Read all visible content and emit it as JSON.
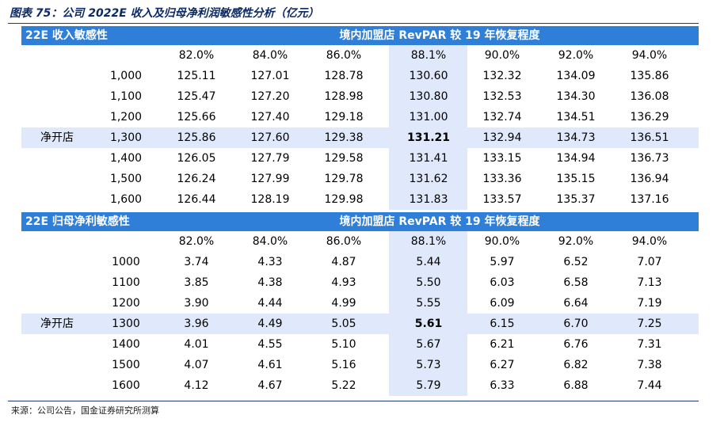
{
  "title": "图表 75：公司 2022E 收入及归母净利润敏感性分析（亿元）",
  "source": "来源：公司公告，国金证券研究所测算",
  "colors": {
    "header_bg": "#2f7fd8",
    "highlight_bg": "#dfe9fb",
    "title_color": "#0b2a66"
  },
  "sections": [
    {
      "section_label": "22E 收入敏感性",
      "group_label": "境内加盟店 RevPAR 较 19 年恢复程度",
      "side_label": "净开店",
      "col_headers": [
        "82.0%",
        "84.0%",
        "86.0%",
        "88.1%",
        "90.0%",
        "92.0%",
        "94.0%"
      ],
      "rows": [
        {
          "label": "1,000",
          "values": [
            "125.11",
            "127.01",
            "128.78",
            "130.60",
            "132.32",
            "134.09",
            "135.86"
          ]
        },
        {
          "label": "1,100",
          "values": [
            "125.47",
            "127.20",
            "128.98",
            "130.80",
            "132.53",
            "134.30",
            "136.08"
          ]
        },
        {
          "label": "1,200",
          "values": [
            "125.66",
            "127.40",
            "129.18",
            "131.00",
            "132.74",
            "134.51",
            "136.29"
          ]
        },
        {
          "label": "1,300",
          "values": [
            "125.86",
            "127.60",
            "129.38",
            "131.21",
            "132.94",
            "134.73",
            "136.51"
          ]
        },
        {
          "label": "1,400",
          "values": [
            "126.05",
            "127.79",
            "129.58",
            "131.41",
            "133.15",
            "134.94",
            "136.73"
          ]
        },
        {
          "label": "1,500",
          "values": [
            "126.24",
            "127.99",
            "129.78",
            "131.62",
            "133.36",
            "135.15",
            "136.94"
          ]
        },
        {
          "label": "1,600",
          "values": [
            "126.44",
            "128.19",
            "129.98",
            "131.83",
            "133.57",
            "135.37",
            "137.16"
          ]
        }
      ]
    },
    {
      "section_label": "22E 归母净利敏感性",
      "group_label": "境内加盟店 RevPAR 较 19 年恢复程度",
      "side_label": "净开店",
      "col_headers": [
        "82.0%",
        "84.0%",
        "86.0%",
        "88.1%",
        "90.0%",
        "92.0%",
        "94.0%"
      ],
      "rows": [
        {
          "label": "1000",
          "values": [
            "3.74",
            "4.33",
            "4.87",
            "5.44",
            "5.97",
            "6.52",
            "7.07"
          ]
        },
        {
          "label": "1100",
          "values": [
            "3.85",
            "4.38",
            "4.93",
            "5.50",
            "6.03",
            "6.58",
            "7.13"
          ]
        },
        {
          "label": "1200",
          "values": [
            "3.90",
            "4.44",
            "4.99",
            "5.55",
            "6.09",
            "6.64",
            "7.19"
          ]
        },
        {
          "label": "1300",
          "values": [
            "3.96",
            "4.49",
            "5.05",
            "5.61",
            "6.15",
            "6.70",
            "7.25"
          ]
        },
        {
          "label": "1400",
          "values": [
            "4.01",
            "4.55",
            "5.10",
            "5.67",
            "6.21",
            "6.76",
            "7.31"
          ]
        },
        {
          "label": "1500",
          "values": [
            "4.07",
            "4.61",
            "5.16",
            "5.73",
            "6.27",
            "6.82",
            "7.38"
          ]
        },
        {
          "label": "1600",
          "values": [
            "4.12",
            "4.67",
            "5.22",
            "5.79",
            "6.33",
            "6.88",
            "7.44"
          ]
        }
      ]
    }
  ]
}
